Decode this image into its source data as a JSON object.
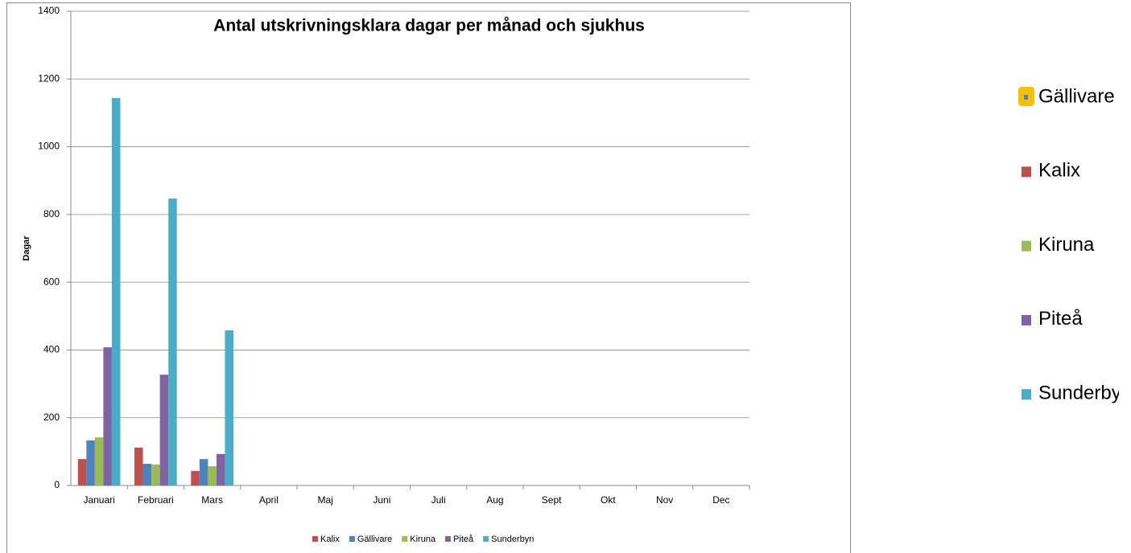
{
  "chart_data": {
    "type": "bar",
    "title": "Antal utskrivningsklara dagar per månad och sjukhus",
    "y_label": "Dagar",
    "categories": [
      "Januari",
      "Februari",
      "Mars",
      "April",
      "Maj",
      "Juni",
      "Juli",
      "Aug",
      "Sept",
      "Okt",
      "Nov",
      "Dec"
    ],
    "series": [
      {
        "name": "Kalix",
        "color": "#c0504d",
        "values": [
          78,
          112,
          43,
          null,
          null,
          null,
          null,
          null,
          null,
          null,
          null,
          null
        ]
      },
      {
        "name": "Gällivare",
        "color": "#4f81bd",
        "values": [
          133,
          64,
          78,
          null,
          null,
          null,
          null,
          null,
          null,
          null,
          null,
          null
        ]
      },
      {
        "name": "Kiruna",
        "color": "#9bbb59",
        "values": [
          142,
          62,
          57,
          null,
          null,
          null,
          null,
          null,
          null,
          null,
          null,
          null
        ]
      },
      {
        "name": "Piteå",
        "color": "#8064a2",
        "values": [
          408,
          327,
          93,
          null,
          null,
          null,
          null,
          null,
          null,
          null,
          null,
          null
        ]
      },
      {
        "name": "Sunderbyn",
        "color": "#4bacc6",
        "values": [
          1144,
          847,
          458,
          null,
          null,
          null,
          null,
          null,
          null,
          null,
          null,
          null
        ]
      }
    ],
    "ylim": [
      0,
      1400
    ],
    "yticks": [
      0,
      200,
      400,
      600,
      800,
      1000,
      1200,
      1400
    ],
    "grid": true,
    "legend": "bottom"
  }
}
